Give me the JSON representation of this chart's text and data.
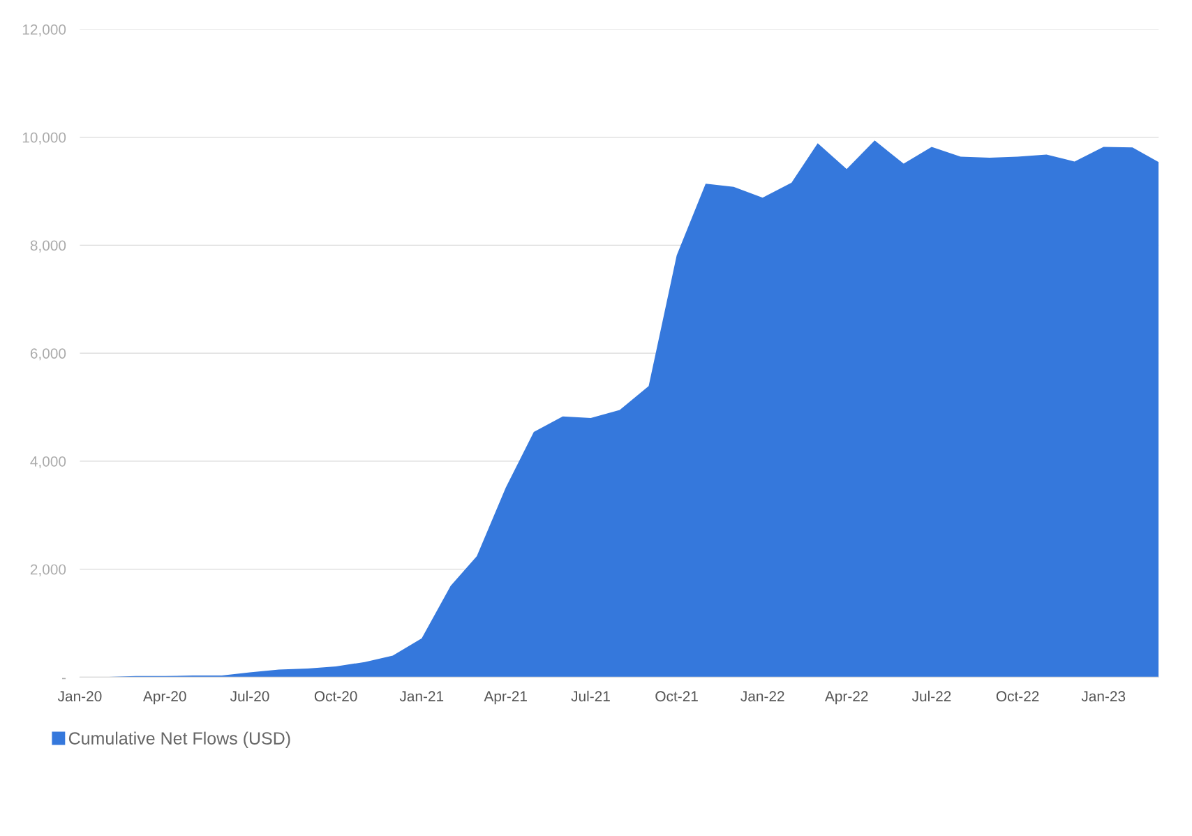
{
  "chart_data": {
    "type": "area",
    "x": [
      "2020-01",
      "2020-02",
      "2020-03",
      "2020-04",
      "2020-05",
      "2020-06",
      "2020-07",
      "2020-08",
      "2020-09",
      "2020-10",
      "2020-11",
      "2020-12",
      "2021-01",
      "2021-02",
      "2021-03",
      "2021-04",
      "2021-05",
      "2021-06",
      "2021-07",
      "2021-08",
      "2021-09",
      "2021-10",
      "2021-11",
      "2021-12",
      "2022-01",
      "2022-02",
      "2022-03",
      "2022-04",
      "2022-05",
      "2022-06",
      "2022-07",
      "2022-08",
      "2022-09",
      "2022-10",
      "2022-11",
      "2022-12",
      "2023-01",
      "2023-02",
      "2023-03"
    ],
    "series": [
      {
        "name": "Cumulative Net Flows (USD)",
        "color": "#3578dc",
        "values": [
          0,
          5,
          20,
          20,
          30,
          30,
          90,
          140,
          160,
          200,
          280,
          400,
          720,
          1690,
          2240,
          3510,
          4540,
          4830,
          4800,
          4950,
          5390,
          7810,
          9140,
          9080,
          8880,
          9160,
          9890,
          9410,
          9940,
          9510,
          9820,
          9640,
          9620,
          9640,
          9680,
          9550,
          9820,
          9810,
          9540
        ]
      }
    ],
    "xlim": [
      "2020-01",
      "2023-03"
    ],
    "xticks": [
      {
        "value": "2020-01",
        "label": "Jan-20"
      },
      {
        "value": "2020-04",
        "label": "Apr-20"
      },
      {
        "value": "2020-07",
        "label": "Jul-20"
      },
      {
        "value": "2020-10",
        "label": "Oct-20"
      },
      {
        "value": "2021-01",
        "label": "Jan-21"
      },
      {
        "value": "2021-04",
        "label": "Apr-21"
      },
      {
        "value": "2021-07",
        "label": "Jul-21"
      },
      {
        "value": "2021-10",
        "label": "Oct-21"
      },
      {
        "value": "2022-01",
        "label": "Jan-22"
      },
      {
        "value": "2022-04",
        "label": "Apr-22"
      },
      {
        "value": "2022-07",
        "label": "Jul-22"
      },
      {
        "value": "2022-10",
        "label": "Oct-22"
      },
      {
        "value": "2023-01",
        "label": "Jan-23"
      }
    ],
    "ylim": [
      0,
      12000
    ],
    "yticks": [
      {
        "value": 0,
        "label": "-"
      },
      {
        "value": 2000,
        "label": "2,000"
      },
      {
        "value": 4000,
        "label": "4,000"
      },
      {
        "value": 6000,
        "label": "6,000"
      },
      {
        "value": 8000,
        "label": "8,000"
      },
      {
        "value": 10000,
        "label": "10,000"
      },
      {
        "value": 12000,
        "label": "12,000"
      }
    ],
    "grid": "y",
    "legend": "bottom left"
  }
}
